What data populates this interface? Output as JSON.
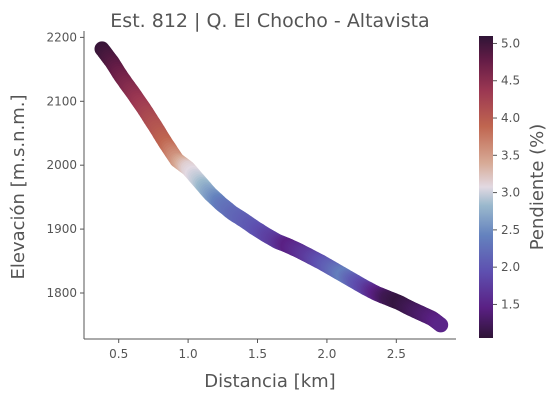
{
  "chart_data": {
    "type": "scatter",
    "title": "Est. 812 | Q. El Chocho - Altavista",
    "xlabel": "Distancia [km]",
    "ylabel": "Elevación [m.s.n.m.]",
    "xlim": [
      0.25,
      2.93
    ],
    "ylim": [
      1728,
      2210
    ],
    "xticks": [
      0.5,
      1.0,
      1.5,
      2.0,
      2.5
    ],
    "xtick_labels": [
      "0.5",
      "1.0",
      "1.5",
      "2.0",
      "2.5"
    ],
    "yticks": [
      1800,
      1900,
      2000,
      2100,
      2200
    ],
    "ytick_labels": [
      "1800",
      "1900",
      "2000",
      "2100",
      "2200"
    ],
    "grid": false,
    "colorbar": {
      "label": "Pendiente (%)",
      "range": [
        1.05,
        5.1
      ],
      "ticks": [
        1.5,
        2.0,
        2.5,
        3.0,
        3.5,
        4.0,
        4.5,
        5.0
      ],
      "tick_labels": [
        "1.5",
        "2.0",
        "2.5",
        "3.0",
        "3.5",
        "4.0",
        "4.5",
        "5.0"
      ],
      "colormap": "twilight_shifted"
    },
    "points": {
      "x": [
        0.38,
        0.45,
        0.52,
        0.6,
        0.68,
        0.76,
        0.84,
        0.92,
        1.0,
        1.08,
        1.16,
        1.24,
        1.32,
        1.4,
        1.48,
        1.56,
        1.64,
        1.72,
        1.8,
        1.88,
        1.96,
        2.04,
        2.12,
        2.2,
        2.28,
        2.36,
        2.44,
        2.52,
        2.6,
        2.68,
        2.76,
        2.82
      ],
      "elevation": [
        2182,
        2162,
        2138,
        2114,
        2089,
        2062,
        2034,
        2008,
        1995,
        1975,
        1955,
        1939,
        1925,
        1914,
        1902,
        1891,
        1881,
        1874,
        1866,
        1857,
        1848,
        1838,
        1828,
        1818,
        1808,
        1799,
        1792,
        1785,
        1776,
        1768,
        1760,
        1750
      ],
      "pendiente": [
        5.05,
        4.9,
        4.7,
        4.5,
        4.3,
        4.1,
        3.9,
        3.55,
        3.15,
        2.95,
        2.65,
        2.35,
        2.2,
        2.1,
        2.0,
        1.85,
        1.7,
        1.45,
        1.6,
        1.75,
        1.95,
        2.15,
        2.4,
        2.05,
        1.8,
        1.45,
        1.2,
        1.1,
        1.2,
        1.3,
        1.4,
        1.5
      ]
    }
  }
}
